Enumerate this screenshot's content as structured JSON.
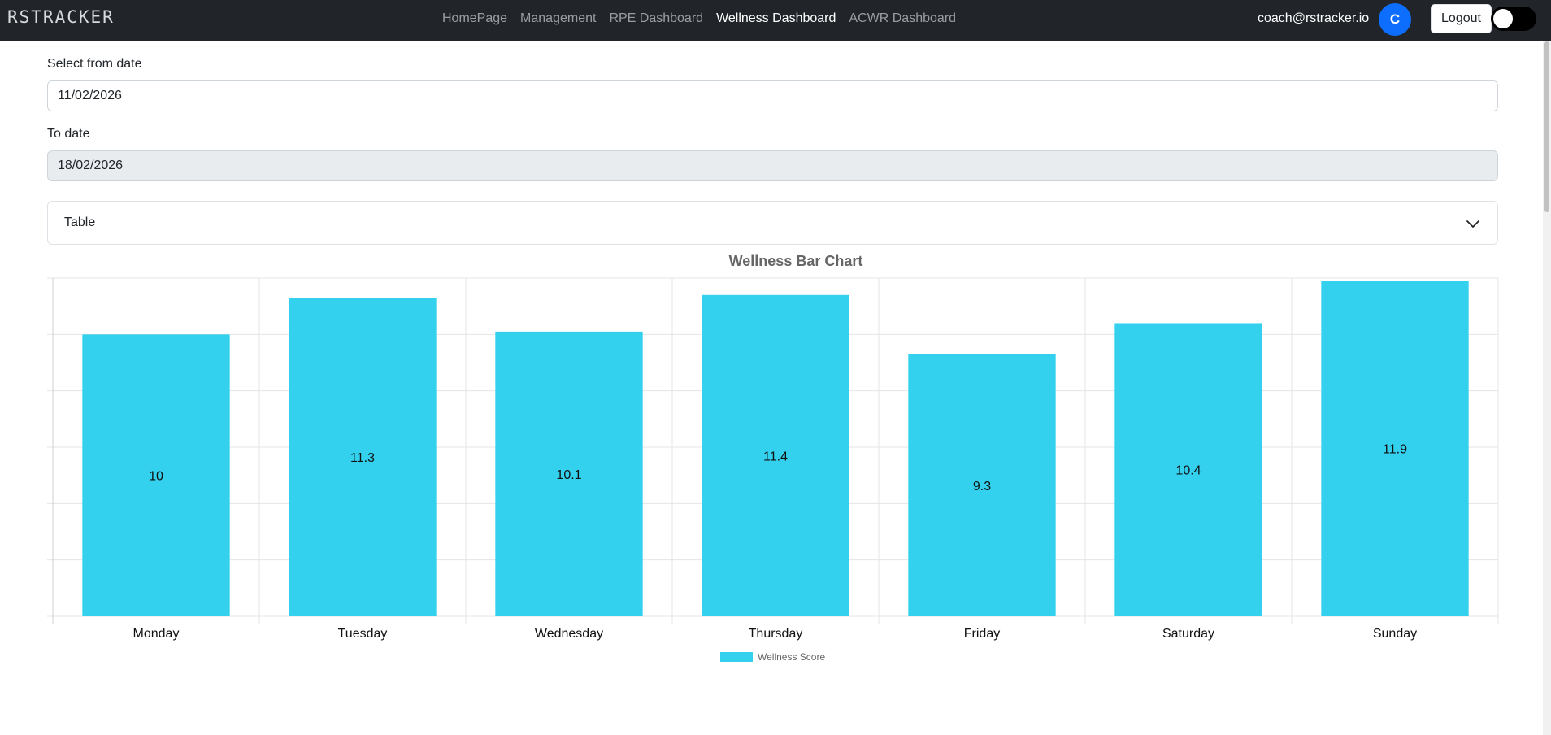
{
  "navbar": {
    "brand": "RSTRACKER",
    "links": [
      {
        "label": "HomePage",
        "active": false
      },
      {
        "label": "Management",
        "active": false
      },
      {
        "label": "RPE Dashboard",
        "active": false
      },
      {
        "label": "Wellness Dashboard",
        "active": true
      },
      {
        "label": "ACWR Dashboard",
        "active": false
      }
    ],
    "user_email": "coach@rstracker.io",
    "avatar_initial": "C",
    "logout_label": "Logout",
    "toggle_on": false
  },
  "filters": {
    "from_label": "Select from date",
    "from_value": "11/02/2026",
    "to_label": "To date",
    "to_value": "18/02/2026"
  },
  "accordion": {
    "label": "Table",
    "icon": "chevron-down-icon",
    "expanded": false
  },
  "colors": {
    "bar": "#33d1ee",
    "navbar": "#212529"
  },
  "chart_data": {
    "type": "bar",
    "title": "Wellness Bar Chart",
    "categories": [
      "Monday",
      "Tuesday",
      "Wednesday",
      "Thursday",
      "Friday",
      "Saturday",
      "Sunday"
    ],
    "series": [
      {
        "name": "Wellness Score",
        "values": [
          10,
          11.3,
          10.1,
          11.4,
          9.3,
          10.4,
          11.9
        ]
      }
    ],
    "ylim": [
      0,
      12
    ],
    "grid": true,
    "legend": "bottom"
  }
}
